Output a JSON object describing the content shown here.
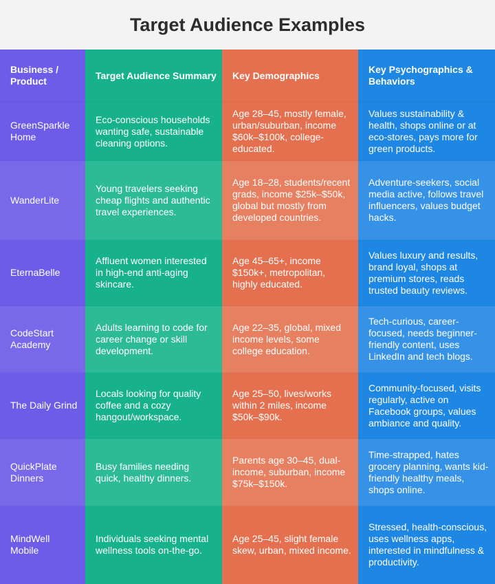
{
  "title": "Target Audience Examples",
  "colors": {
    "col1": "#6c5ce7",
    "col2": "#17b28c",
    "col3": "#e4704f",
    "col4": "#1e86e3"
  },
  "headers": [
    "Business / Product",
    "Target Audience Summary",
    "Key Demographics",
    "Key Psychographics & Behaviors"
  ],
  "rows": [
    [
      "GreenSparkle Home",
      "Eco-conscious households wanting safe, sustainable cleaning options.",
      "Age 28–45, mostly female, urban/suburban, income $60k–$100k, college-educated.",
      "Values sustainability & health, shops online or at eco-stores, pays more for green products."
    ],
    [
      "WanderLite",
      "Young travelers seeking cheap flights and authentic travel experiences.",
      "Age 18–28, students/recent grads, income $25k–$50k, global but mostly from developed countries.",
      "Adventure-seekers, social media active, follows travel influencers, values budget hacks."
    ],
    [
      "EternaBelle",
      "Affluent women interested in high-end anti-aging skincare.",
      "Age 45–65+, income $150k+, metropolitan, highly educated.",
      "Values luxury and results, brand loyal, shops at premium stores, reads trusted beauty reviews."
    ],
    [
      "CodeStart Academy",
      "Adults learning to code for career change or skill development.",
      "Age 22–35, global, mixed income levels, some college education.",
      "Tech-curious, career-focused, needs beginner-friendly content, uses LinkedIn and tech blogs."
    ],
    [
      "The Daily Grind",
      "Locals looking for quality coffee and a cozy hangout/workspace.",
      "Age 25–50, lives/works within 2 miles, income $50k–$90k.",
      "Community-focused, visits regularly, active on Facebook groups, values ambiance and quality."
    ],
    [
      "QuickPlate Dinners",
      "Busy families needing quick, healthy dinners.",
      "Parents age 30–45, dual-income, suburban, income $75k–$150k.",
      "Time-strapped, hates grocery planning, wants kid-friendly healthy meals, shops online."
    ],
    [
      "MindWell Mobile",
      "Individuals seeking mental wellness tools on-the-go.",
      "Age 25–45, slight female skew, urban, mixed income.",
      "Stressed, health-conscious, uses wellness apps, interested in mindfulness & productivity."
    ]
  ]
}
